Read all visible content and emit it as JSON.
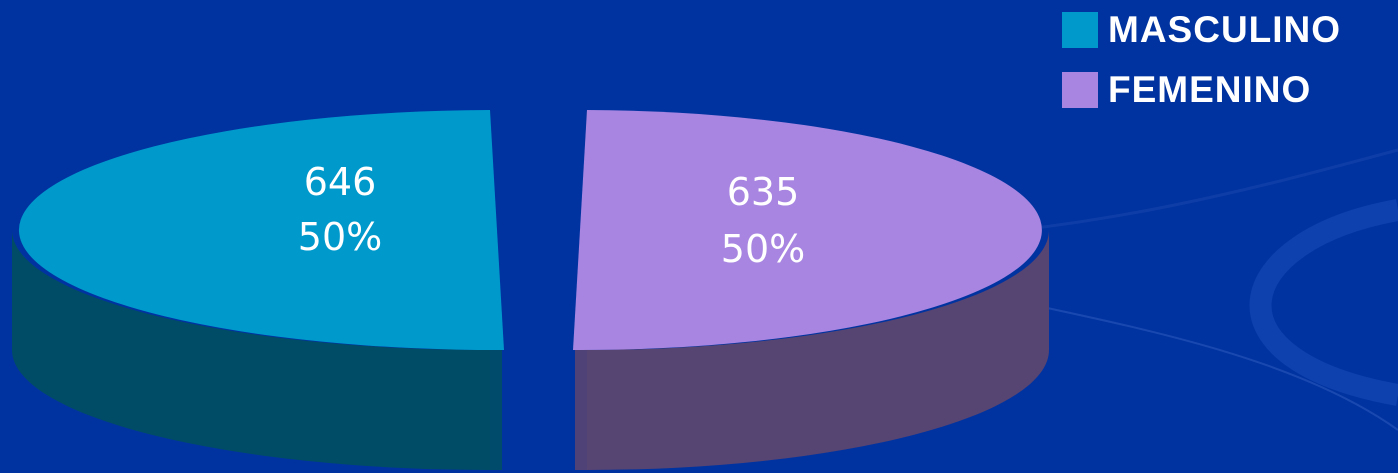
{
  "chart_data": {
    "type": "pie",
    "title": "",
    "legend_position": "top-right",
    "series": [
      {
        "name": "MASCULINO",
        "value": 646,
        "percent": "50%",
        "color": "#0099cc",
        "side_color": "#004c66"
      },
      {
        "name": "FEMENINO",
        "value": 635,
        "percent": "50%",
        "color": "#a785e0",
        "side_color": "#564472"
      }
    ]
  },
  "legend": {
    "items": [
      {
        "label": "MASCULINO",
        "color": "#0099cc"
      },
      {
        "label": "FEMENINO",
        "color": "#a785e0"
      }
    ]
  }
}
